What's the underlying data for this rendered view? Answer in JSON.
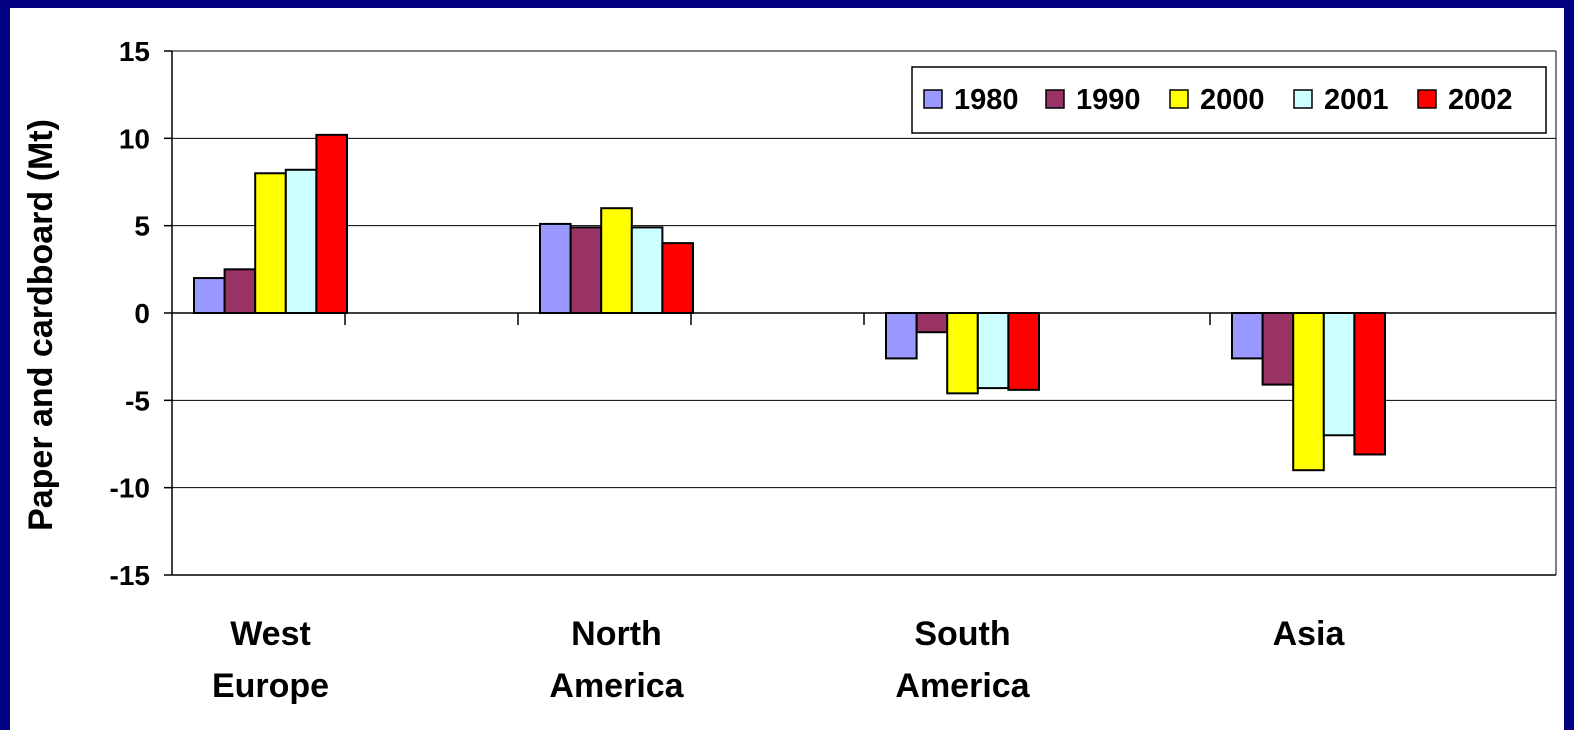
{
  "chart_data": {
    "type": "bar",
    "ylabel": "Paper and cardboard (Mt)",
    "xlabel": "",
    "title": "",
    "ylim": [
      -15,
      15
    ],
    "yticks": [
      15,
      10,
      5,
      0,
      -5,
      -10,
      -15
    ],
    "ytick_labels": [
      "15",
      "10",
      "5",
      "0",
      "-5",
      "-10",
      "-15"
    ],
    "grid": true,
    "legend_position": "top-right",
    "categories": [
      [
        "West",
        "Europe"
      ],
      [
        "North",
        "America"
      ],
      [
        "South",
        "America"
      ],
      [
        "Asia"
      ]
    ],
    "series": [
      {
        "name": "1980",
        "color": "#9999FF",
        "values": [
          2.0,
          5.1,
          -2.6,
          -2.6
        ]
      },
      {
        "name": "1990",
        "color": "#993366",
        "values": [
          2.5,
          4.9,
          -1.1,
          -4.1
        ]
      },
      {
        "name": "2000",
        "color": "#FFFF00",
        "values": [
          8.0,
          6.0,
          -4.6,
          -9.0
        ]
      },
      {
        "name": "2001",
        "color": "#CCFFFF",
        "values": [
          8.2,
          4.9,
          -4.3,
          -7.0
        ]
      },
      {
        "name": "2002",
        "color": "#FF0000",
        "values": [
          10.2,
          4.0,
          -4.4,
          -8.1
        ]
      }
    ]
  },
  "colors": {
    "background": "#000080",
    "plot": "#FFFFFF",
    "bar_outline": "#000000"
  }
}
